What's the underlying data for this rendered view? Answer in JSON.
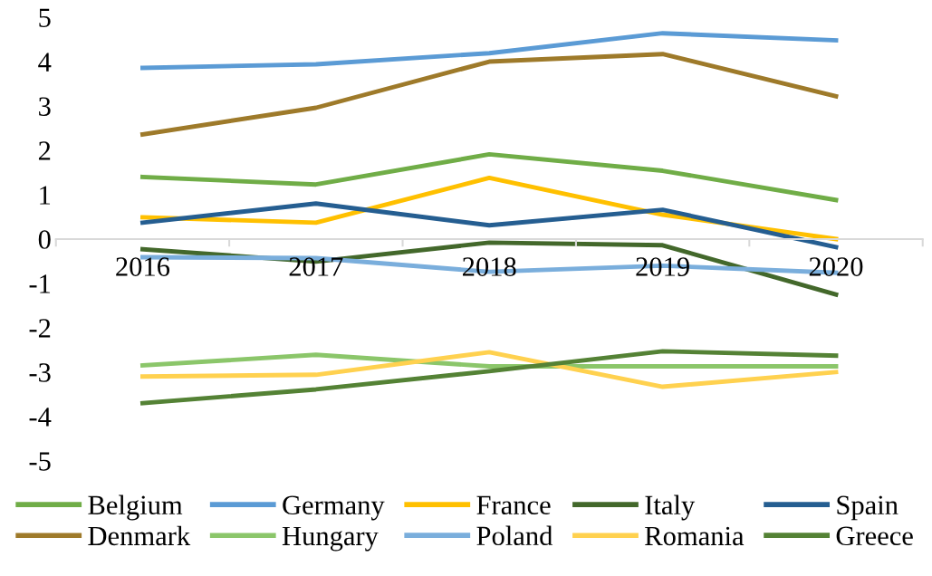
{
  "chart_data": {
    "type": "line",
    "categories": [
      "2016",
      "2017",
      "2018",
      "2019",
      "2020"
    ],
    "ylim": [
      -5,
      5
    ],
    "yticks": [
      -5,
      -4,
      -3,
      -2,
      -1,
      0,
      1,
      2,
      3,
      4,
      5
    ],
    "grid": false,
    "legend": "bottom",
    "marker": "none",
    "line_style": "solid",
    "series": [
      {
        "name": "Belgium",
        "color": "#70ad47",
        "values": [
          1.4,
          1.23,
          1.91,
          1.54,
          0.88
        ]
      },
      {
        "name": "Germany",
        "color": "#5b9bd5",
        "values": [
          3.86,
          3.94,
          4.19,
          4.64,
          4.48
        ]
      },
      {
        "name": "France",
        "color": "#ffc000",
        "values": [
          0.49,
          0.37,
          1.38,
          0.55,
          0.0
        ]
      },
      {
        "name": "Italy",
        "color": "#43682b",
        "values": [
          -0.23,
          -0.51,
          -0.08,
          -0.14,
          -1.25
        ]
      },
      {
        "name": "Spain",
        "color": "#255e91",
        "values": [
          0.37,
          0.8,
          0.31,
          0.66,
          -0.18
        ]
      },
      {
        "name": "Denmark",
        "color": "#9e7a2a",
        "values": [
          2.36,
          2.96,
          4.0,
          4.17,
          3.22
        ]
      },
      {
        "name": "Hungary",
        "color": "#8bc66a",
        "values": [
          -2.85,
          -2.61,
          -2.87,
          -2.87,
          -2.87
        ]
      },
      {
        "name": "Poland",
        "color": "#7aaedc",
        "values": [
          -0.41,
          -0.43,
          -0.74,
          -0.6,
          -0.76
        ]
      },
      {
        "name": "Romania",
        "color": "#ffd14f",
        "values": [
          -3.1,
          -3.06,
          -2.55,
          -3.33,
          -3.0
        ]
      },
      {
        "name": "Greece",
        "color": "#548235",
        "values": [
          -3.7,
          -3.39,
          -2.98,
          -2.53,
          -2.63
        ]
      }
    ]
  }
}
